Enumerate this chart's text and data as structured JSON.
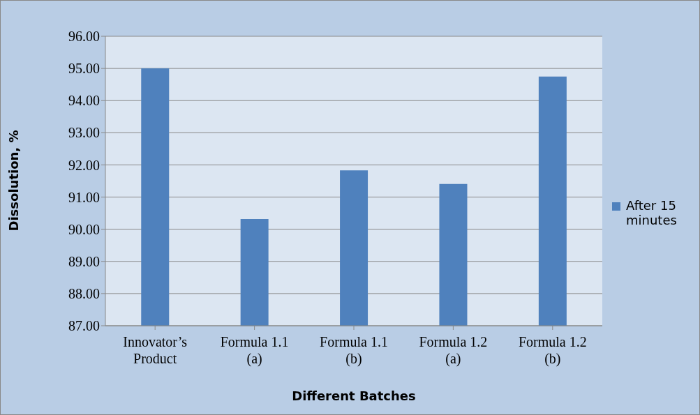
{
  "chart_data": {
    "type": "bar",
    "xlabel": "Different Batches",
    "ylabel": "Dissolution, %",
    "categories": [
      "Innovator’s Product",
      "Formula 1.1 (a)",
      "Formula 1.1 (b)",
      "Formula 1.2 (a)",
      "Formula 1.2 (b)"
    ],
    "series": [
      {
        "name": "After 15 minutes",
        "color": "#4f81bd",
        "values": [
          95.0,
          90.32,
          91.83,
          91.41,
          94.75
        ]
      }
    ],
    "ylim": [
      87,
      96
    ],
    "yticks": [
      {
        "value": 87,
        "label": "87.00"
      },
      {
        "value": 88,
        "label": "88.00"
      },
      {
        "value": 89,
        "label": "89.00"
      },
      {
        "value": 90,
        "label": "90.00"
      },
      {
        "value": 91,
        "label": "91.00"
      },
      {
        "value": 92,
        "label": "92.00"
      },
      {
        "value": 93,
        "label": "93.00"
      },
      {
        "value": 94,
        "label": "94.00"
      },
      {
        "value": 95,
        "label": "95.00"
      },
      {
        "value": 96,
        "label": "96.00"
      }
    ],
    "grid": "y",
    "legend": "right"
  }
}
